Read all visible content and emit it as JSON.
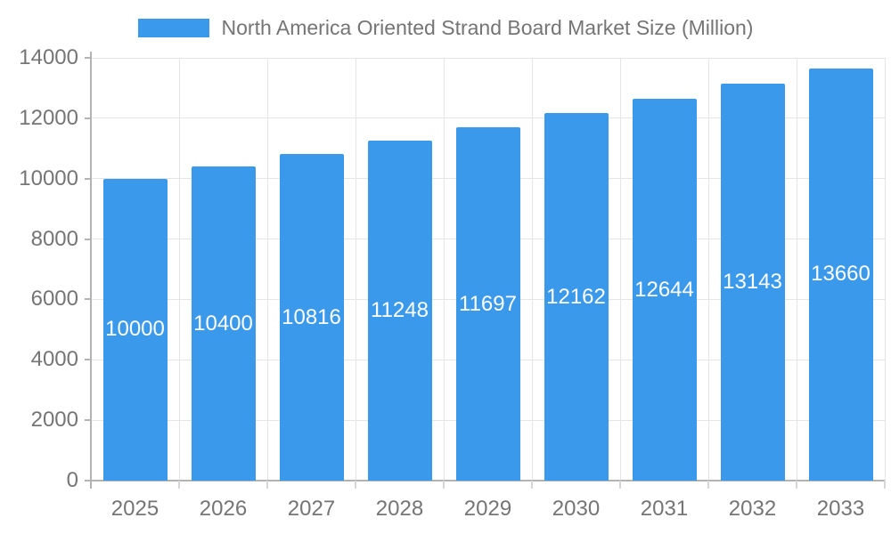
{
  "legend": {
    "label": "North America Oriented Strand Board Market Size (Million)"
  },
  "chart_data": {
    "type": "bar",
    "title": "North America Oriented Strand Board Market Size (Million)",
    "categories": [
      "2025",
      "2026",
      "2027",
      "2028",
      "2029",
      "2030",
      "2031",
      "2032",
      "2033"
    ],
    "values": [
      10000,
      10400,
      10816,
      11248,
      11697,
      12162,
      12644,
      13143,
      13660
    ],
    "bar_labels": [
      "10000",
      "10400",
      "10816",
      "11248",
      "11697",
      "12162",
      "12644",
      "13143",
      "13660"
    ],
    "xlabel": "",
    "ylabel": "",
    "ylim": [
      0,
      14000
    ],
    "ytick_step": 2000,
    "yticks": [
      0,
      2000,
      4000,
      6000,
      8000,
      10000,
      12000,
      14000
    ],
    "grid": true,
    "legend_position": "top",
    "colors": {
      "bar": "#3b99ec",
      "grid": "#e5e5e5",
      "axis": "#b3b3b3",
      "minor_tick": "#d6d6d6",
      "axis_text": "#757575",
      "bar_label_text": "#ffffff"
    }
  }
}
